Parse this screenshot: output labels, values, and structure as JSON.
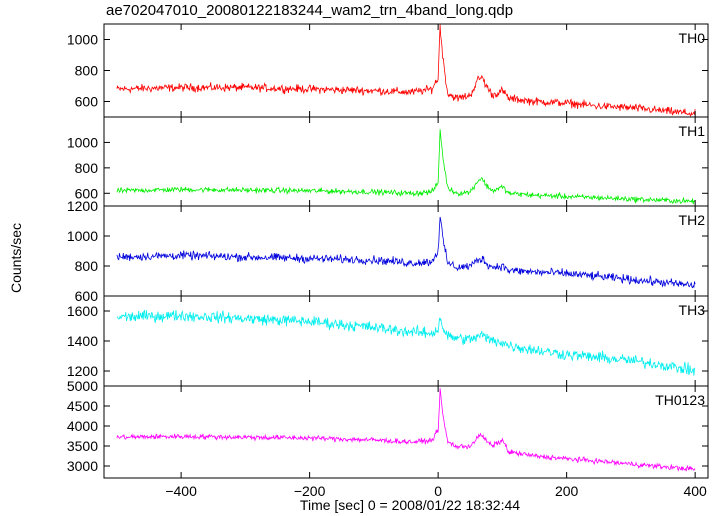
{
  "chart_data": {
    "type": "line",
    "title": "ae702047010_20080122183244_wam2_trn_4band_long.qdp",
    "xlabel": "Time [sec] 0 = 2008/01/22 18:32:44",
    "ylabel": "Counts/sec",
    "xlim": [
      -520,
      420
    ],
    "xticks": [
      -400,
      -200,
      0,
      200,
      400
    ],
    "grid": false,
    "panels": [
      {
        "name": "TH0",
        "color": "#ff0000",
        "ylim": [
          500,
          1100
        ],
        "yticks": [
          600,
          800,
          1000
        ],
        "x": [
          -500,
          -400,
          -300,
          -200,
          -100,
          -40,
          -10,
          0,
          3,
          8,
          15,
          30,
          50,
          62,
          68,
          75,
          85,
          95,
          100,
          110,
          150,
          200,
          250,
          300,
          350,
          400
        ],
        "values": [
          680,
          690,
          690,
          680,
          670,
          660,
          680,
          750,
          1090,
          860,
          650,
          620,
          640,
          740,
          760,
          700,
          640,
          660,
          670,
          620,
          600,
          590,
          570,
          560,
          540,
          520
        ],
        "noise": 22
      },
      {
        "name": "TH1",
        "color": "#00ee00",
        "ylim": [
          500,
          1200
        ],
        "yticks": [
          600,
          800,
          1000
        ],
        "x": [
          -500,
          -400,
          -300,
          -200,
          -100,
          -40,
          -10,
          0,
          3,
          8,
          15,
          30,
          50,
          62,
          68,
          75,
          85,
          95,
          100,
          110,
          150,
          200,
          250,
          300,
          350,
          400
        ],
        "values": [
          620,
          630,
          625,
          620,
          610,
          600,
          610,
          680,
          1100,
          860,
          640,
          600,
          610,
          700,
          720,
          660,
          620,
          640,
          650,
          600,
          585,
          575,
          565,
          555,
          545,
          535
        ],
        "noise": 18
      },
      {
        "name": "TH2",
        "color": "#0000dd",
        "ylim": [
          600,
          1200
        ],
        "yticks": [
          600,
          800,
          1000,
          1200
        ],
        "x": [
          -500,
          -400,
          -300,
          -200,
          -100,
          -40,
          -10,
          0,
          3,
          8,
          15,
          30,
          50,
          62,
          68,
          75,
          85,
          95,
          100,
          110,
          150,
          200,
          250,
          300,
          350,
          400
        ],
        "values": [
          860,
          870,
          860,
          850,
          840,
          820,
          830,
          900,
          1140,
          960,
          820,
          790,
          800,
          840,
          850,
          820,
          790,
          800,
          800,
          770,
          760,
          750,
          730,
          710,
          690,
          670
        ],
        "noise": 24
      },
      {
        "name": "TH3",
        "color": "#00eeee",
        "ylim": [
          1100,
          1700
        ],
        "yticks": [
          1200,
          1400,
          1600
        ],
        "x": [
          -500,
          -400,
          -300,
          -200,
          -100,
          -40,
          -10,
          0,
          3,
          8,
          15,
          30,
          50,
          62,
          68,
          75,
          85,
          95,
          100,
          110,
          150,
          200,
          250,
          300,
          350,
          400
        ],
        "values": [
          1560,
          1570,
          1550,
          1530,
          1490,
          1460,
          1450,
          1480,
          1560,
          1480,
          1430,
          1420,
          1410,
          1430,
          1440,
          1420,
          1400,
          1400,
          1390,
          1370,
          1340,
          1310,
          1290,
          1270,
          1240,
          1200
        ],
        "noise": 32
      },
      {
        "name": "TH0123",
        "color": "#ff00ff",
        "ylim": [
          2700,
          5000
        ],
        "yticks": [
          3000,
          3500,
          4000,
          4500,
          5000
        ],
        "x": [
          -500,
          -400,
          -300,
          -200,
          -100,
          -40,
          -10,
          0,
          3,
          8,
          15,
          30,
          50,
          62,
          68,
          75,
          85,
          95,
          100,
          110,
          150,
          200,
          250,
          300,
          350,
          400
        ],
        "values": [
          3720,
          3740,
          3720,
          3700,
          3650,
          3600,
          3640,
          3900,
          4900,
          4200,
          3600,
          3480,
          3500,
          3720,
          3780,
          3620,
          3500,
          3600,
          3650,
          3350,
          3250,
          3180,
          3120,
          3050,
          2980,
          2920
        ],
        "noise": 55
      }
    ]
  }
}
